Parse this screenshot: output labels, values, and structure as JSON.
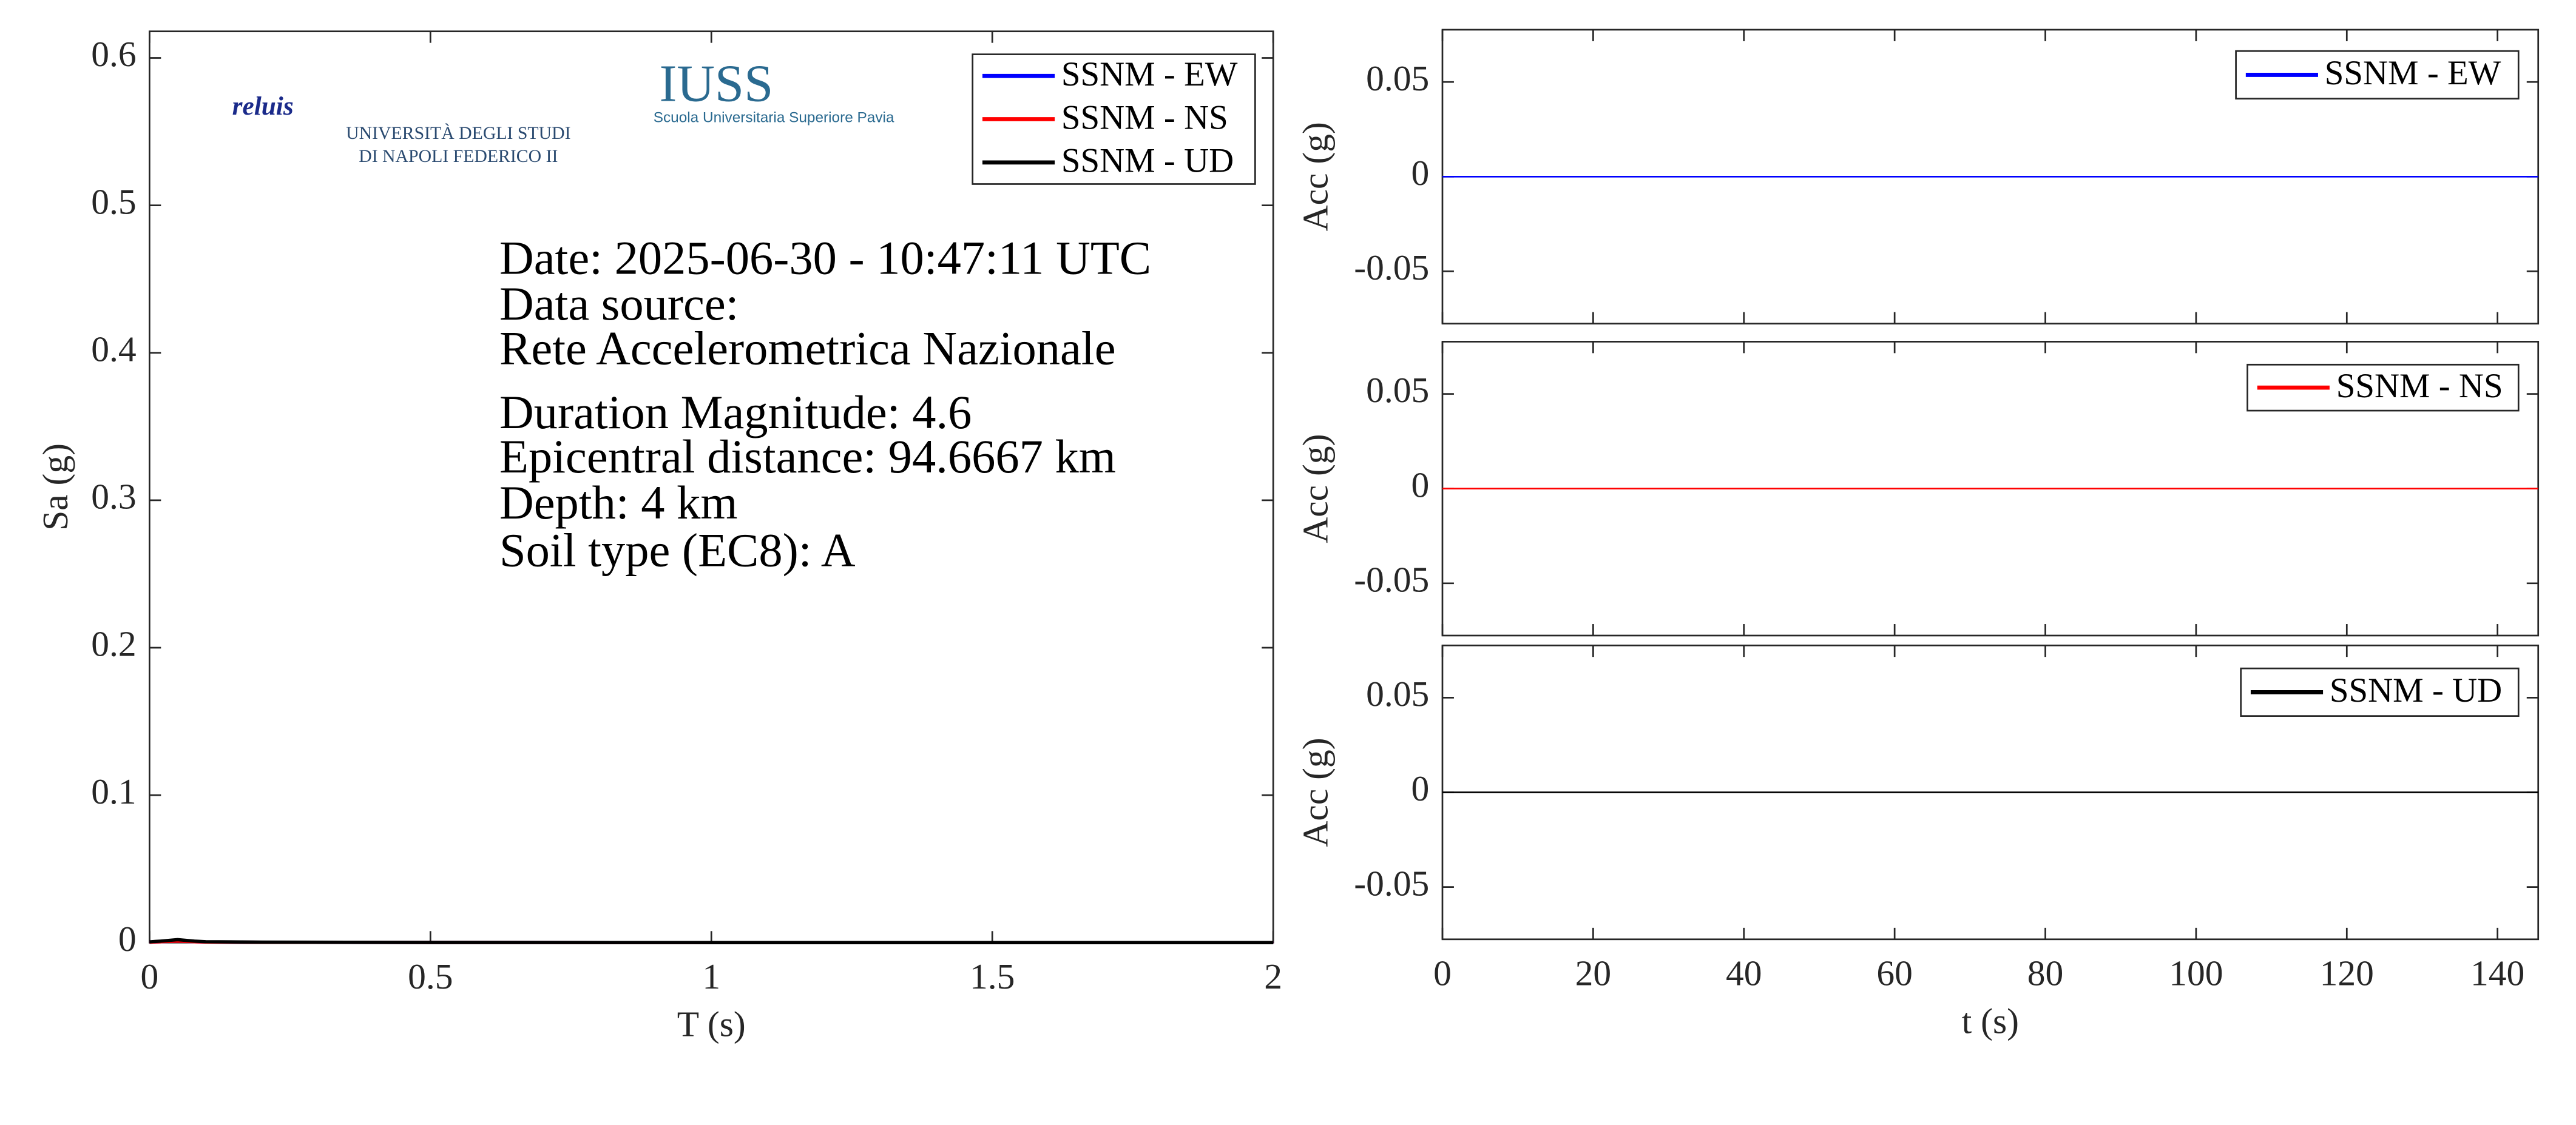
{
  "chart_data": [
    {
      "type": "line",
      "xlabel": "T (s)",
      "ylabel": "Sa (g)",
      "xlim": [
        0,
        2
      ],
      "ylim": [
        0,
        0.618
      ],
      "xticks": [
        0,
        0.5,
        1,
        1.5,
        2
      ],
      "yticks": [
        0,
        0.1,
        0.2,
        0.3,
        0.4,
        0.5,
        0.6
      ],
      "x": [
        0,
        0.02,
        0.05,
        0.08,
        0.1,
        0.2,
        0.5,
        1,
        1.5,
        2
      ],
      "series": [
        {
          "name": "SSNM - EW",
          "color": "#0000ff",
          "values": [
            0.0003,
            0.0006,
            0.001,
            0.0006,
            0.0004,
            0.0002,
            0.0001,
            0,
            0,
            0
          ]
        },
        {
          "name": "SSNM - NS",
          "color": "#ff0000",
          "values": [
            0.0003,
            0.0006,
            0.001,
            0.0006,
            0.0004,
            0.0002,
            0.0001,
            0,
            0,
            0
          ]
        },
        {
          "name": "SSNM - UD",
          "color": "#000000",
          "values": [
            0.0005,
            0.001,
            0.002,
            0.001,
            0.0006,
            0.0003,
            0.0001,
            0,
            0,
            0
          ]
        }
      ],
      "legend": "upper right",
      "annotations": [
        "Date: 2025-06-30 - 10:47:11 UTC",
        "Data source:",
        "Rete Accelerometrica Nazionale",
        "Duration Magnitude: 4.6",
        "Epicentral distance: 94.6667 km",
        "Depth: 4 km",
        "Soil type (EC8): A"
      ],
      "logos": [
        "reluis",
        "UNIVERSITÀ DEGLI STUDI",
        "DI NAPOLI FEDERICO II",
        "IUSS",
        "Scuola Universitaria Superiore Pavia"
      ]
    },
    {
      "type": "line",
      "ylabel": "Acc (g)",
      "xlim": [
        0,
        145.4
      ],
      "ylim": [
        -0.0776,
        0.0776
      ],
      "yticks": [
        -0.05,
        0,
        0.05
      ],
      "x": [
        0,
        20,
        40,
        60,
        80,
        100,
        120,
        140,
        145.4
      ],
      "series": [
        {
          "name": "SSNM - EW",
          "color": "#0000ff",
          "values": [
            0,
            0,
            0,
            0,
            0,
            0,
            0,
            0,
            0
          ]
        }
      ],
      "legend": "upper right"
    },
    {
      "type": "line",
      "ylabel": "Acc (g)",
      "xlim": [
        0,
        145.4
      ],
      "ylim": [
        -0.0776,
        0.0776
      ],
      "yticks": [
        -0.05,
        0,
        0.05
      ],
      "x": [
        0,
        20,
        40,
        60,
        80,
        100,
        120,
        140,
        145.4
      ],
      "series": [
        {
          "name": "SSNM - NS",
          "color": "#ff0000",
          "values": [
            0,
            0,
            0,
            0,
            0,
            0,
            0,
            0,
            0
          ]
        }
      ],
      "legend": "upper right"
    },
    {
      "type": "line",
      "ylabel": "Acc (g)",
      "xlabel": "t (s)",
      "xlim": [
        0,
        145.4
      ],
      "ylim": [
        -0.0776,
        0.0776
      ],
      "yticks": [
        -0.05,
        0,
        0.05
      ],
      "xticks": [
        0,
        20,
        40,
        60,
        80,
        100,
        120,
        140
      ],
      "x": [
        0,
        20,
        40,
        60,
        80,
        100,
        120,
        140,
        145.4
      ],
      "series": [
        {
          "name": "SSNM - UD",
          "color": "#000000",
          "values": [
            0,
            0,
            0,
            0,
            0,
            0,
            0,
            0,
            0
          ]
        }
      ],
      "legend": "upper right"
    }
  ]
}
